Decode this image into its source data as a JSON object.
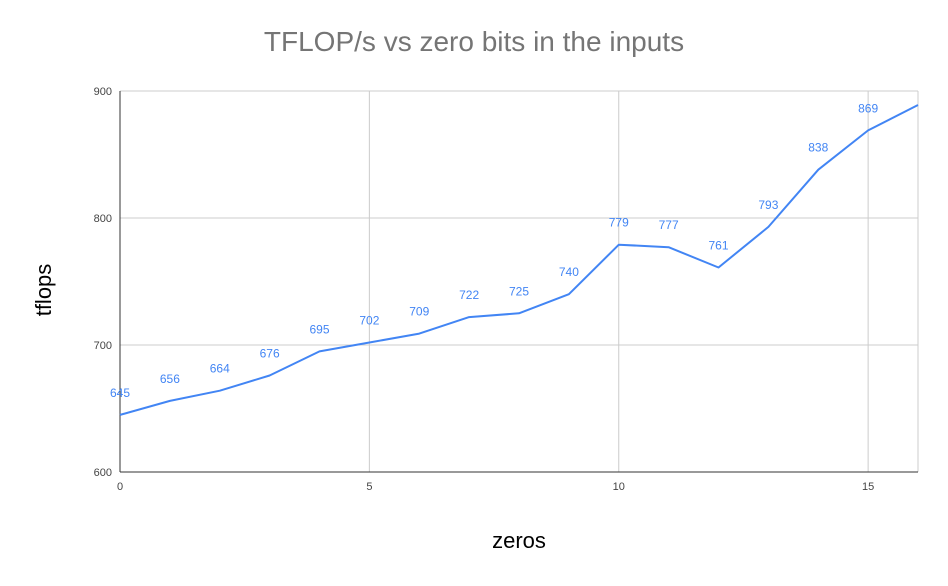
{
  "chart_data": {
    "type": "line",
    "title": "TFLOP/s vs zero bits in the inputs",
    "xlabel": "zeros",
    "ylabel": "tflops",
    "x": [
      0,
      1,
      2,
      3,
      4,
      5,
      6,
      7,
      8,
      9,
      10,
      11,
      12,
      13,
      14,
      15,
      16
    ],
    "series": [
      {
        "values": [
          645,
          656,
          664,
          676,
          695,
          702,
          709,
          722,
          725,
          740,
          779,
          777,
          761,
          793,
          838,
          869,
          889
        ],
        "labels": [
          "645",
          "656",
          "664",
          "676",
          "695",
          "702",
          "709",
          "722",
          "725",
          "740",
          "779",
          "777",
          "761",
          "793",
          "838",
          "869",
          ""
        ],
        "color": "#4285f4"
      }
    ],
    "xlim": [
      0,
      16
    ],
    "ylim": [
      600,
      900
    ],
    "x_ticks": [
      "0",
      "5",
      "10",
      "15"
    ],
    "x_tick_values": [
      0,
      5,
      10,
      15
    ],
    "y_ticks": [
      "600",
      "700",
      "800",
      "900"
    ],
    "y_tick_values": [
      600,
      700,
      800,
      900
    ],
    "grid": true,
    "colors": {
      "line": "#4285f4",
      "label": "#4285f4",
      "grid": "#cccccc",
      "axis": "#333333",
      "title": "#757575"
    }
  }
}
